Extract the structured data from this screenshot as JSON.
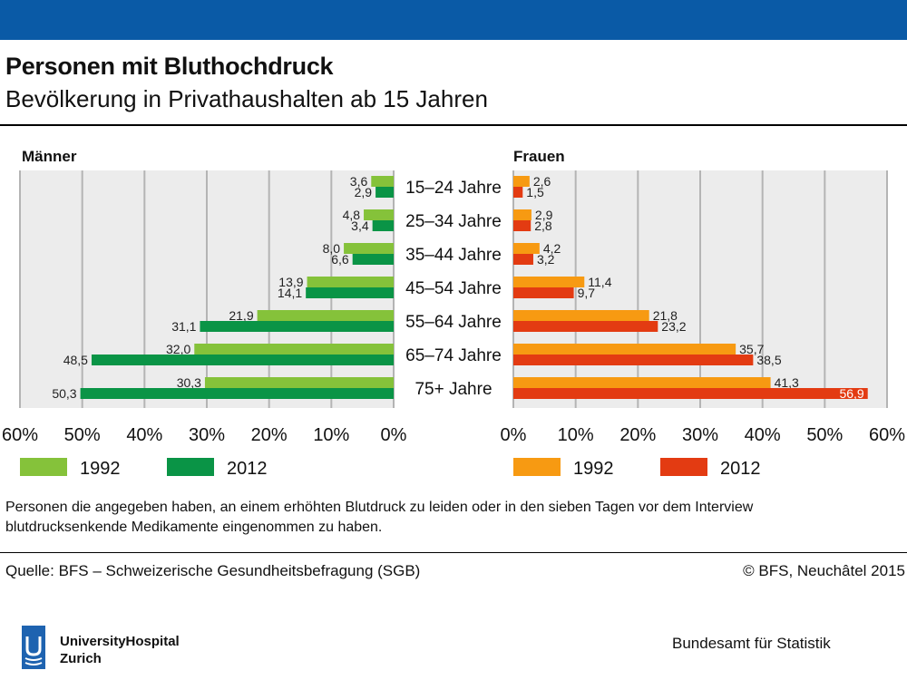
{
  "header": {
    "title": "Personen mit Bluthochdruck",
    "subtitle": "Bevölkerung in Privathaushalten ab 15 Jahren"
  },
  "colors": {
    "top_bar": "#0a5aa6",
    "men_1992": "#85c23a",
    "men_2012": "#0a9446",
    "women_1992": "#f79a12",
    "women_2012": "#e33b12",
    "plot_bg": "#ececec",
    "grid": "#b4b4b4"
  },
  "chart_data": [
    {
      "type": "bar",
      "orientation": "horizontal",
      "title": "Männer",
      "categories": [
        "15–24 Jahre",
        "25–34 Jahre",
        "35–44 Jahre",
        "45–54 Jahre",
        "55–64 Jahre",
        "65–74 Jahre",
        "75+ Jahre"
      ],
      "series": [
        {
          "name": "1992",
          "values": [
            3.6,
            4.8,
            8.0,
            13.9,
            21.9,
            32.0,
            30.3
          ],
          "labels": [
            "3,6",
            "4,8",
            "8,0",
            "13,9",
            "21,9",
            "32,0",
            "30,3"
          ]
        },
        {
          "name": "2012",
          "values": [
            2.9,
            3.4,
            6.6,
            14.1,
            31.1,
            48.5,
            50.3
          ],
          "labels": [
            "2,9",
            "3,4",
            "6,6",
            "14,1",
            "31,1",
            "48,5",
            "50,3"
          ]
        }
      ],
      "xlim": [
        0,
        60
      ],
      "x_direction": "reversed",
      "tick_labels": [
        "60%",
        "50%",
        "40%",
        "30%",
        "20%",
        "10%",
        "0%"
      ],
      "grid": true,
      "legend_position": "bottom"
    },
    {
      "type": "bar",
      "orientation": "horizontal",
      "title": "Frauen",
      "categories": [
        "15–24 Jahre",
        "25–34 Jahre",
        "35–44 Jahre",
        "45–54 Jahre",
        "55–64 Jahre",
        "65–74 Jahre",
        "75+ Jahre"
      ],
      "series": [
        {
          "name": "1992",
          "values": [
            2.6,
            2.9,
            4.2,
            11.4,
            21.8,
            35.7,
            41.3
          ],
          "labels": [
            "2,6",
            "2,9",
            "4,2",
            "11,4",
            "21,8",
            "35,7",
            "41,3"
          ]
        },
        {
          "name": "2012",
          "values": [
            1.5,
            2.8,
            3.2,
            9.7,
            23.2,
            38.5,
            56.9
          ],
          "labels": [
            "1,5",
            "2,8",
            "3,2",
            "9,7",
            "23,2",
            "38,5",
            "56,9"
          ]
        }
      ],
      "xlim": [
        0,
        60
      ],
      "tick_labels": [
        "0%",
        "10%",
        "20%",
        "30%",
        "40%",
        "50%",
        "60%"
      ],
      "grid": true,
      "legend_position": "bottom"
    }
  ],
  "footnote": {
    "line1": "Personen die angegeben haben, an einem erhöhten Blutdruck zu leiden oder in den sieben Tagen vor dem Interview",
    "line2": "blutdrucksenkende Medikamente eingenommen zu haben."
  },
  "source": "Quelle: BFS – Schweizerische Gesundheitsbefragung (SGB)",
  "copyright": "© BFS, Neuchâtel 2015",
  "branding": {
    "logo_icon": "university-hospital-logo-icon",
    "logo_line1": "UniversityHospital",
    "logo_line2": "Zurich",
    "agency": "Bundesamt für Statistik"
  }
}
